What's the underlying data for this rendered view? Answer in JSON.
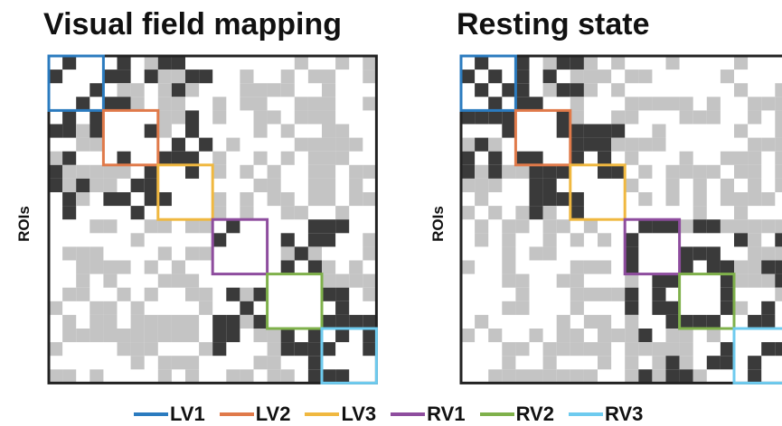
{
  "panels": [
    {
      "title": "Visual field mapping",
      "axis_label": "ROIs"
    },
    {
      "title": "Resting state",
      "axis_label": "ROIs"
    }
  ],
  "legend": [
    {
      "label": "LV1",
      "color": "#2b7bbf"
    },
    {
      "label": "LV2",
      "color": "#e07a4a"
    },
    {
      "label": "LV3",
      "color": "#f0b840"
    },
    {
      "label": "RV1",
      "color": "#8e4d9e"
    },
    {
      "label": "RV2",
      "color": "#7fb14b"
    },
    {
      "label": "RV3",
      "color": "#6ecbef"
    }
  ],
  "cell_colors": {
    "strong": "#3a3a3a",
    "weak": "#c4c4c4",
    "none": "#ffffff"
  }
}
